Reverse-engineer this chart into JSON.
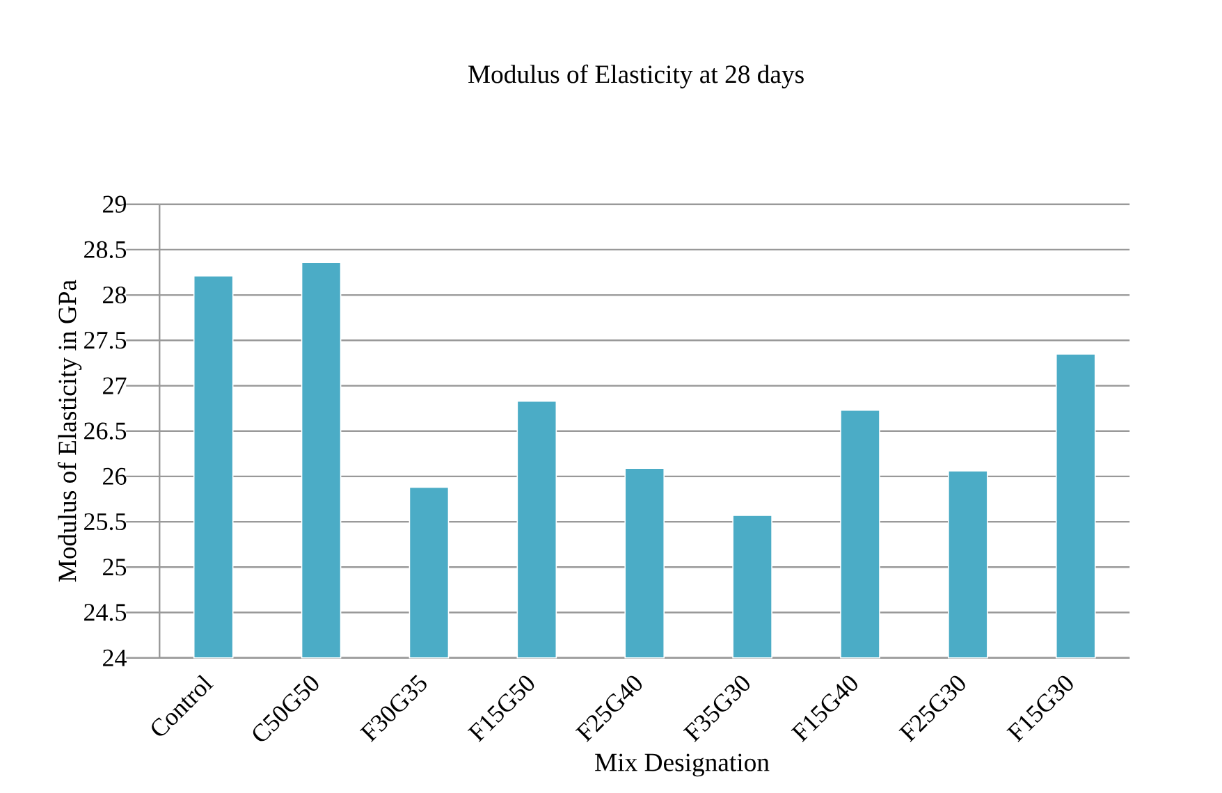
{
  "chart_data": {
    "type": "bar",
    "title": "Modulus of Elasticity at 28 days",
    "xlabel": "Mix Designation",
    "ylabel": "Modulus of Elasticity in GPa",
    "categories": [
      "Control",
      "C50G50",
      "F30G35",
      "F15G50",
      "F25G40",
      "F35G30",
      "F15G40",
      "F25G30",
      "F15G30"
    ],
    "values": [
      28.21,
      28.36,
      25.88,
      26.83,
      26.09,
      25.57,
      26.73,
      26.06,
      27.35
    ],
    "color": "#4bacc6",
    "ylim": [
      24,
      29
    ],
    "yticks": [
      24,
      24.5,
      25,
      25.5,
      26,
      26.5,
      27,
      27.5,
      28,
      28.5,
      29
    ],
    "grid": "y"
  }
}
